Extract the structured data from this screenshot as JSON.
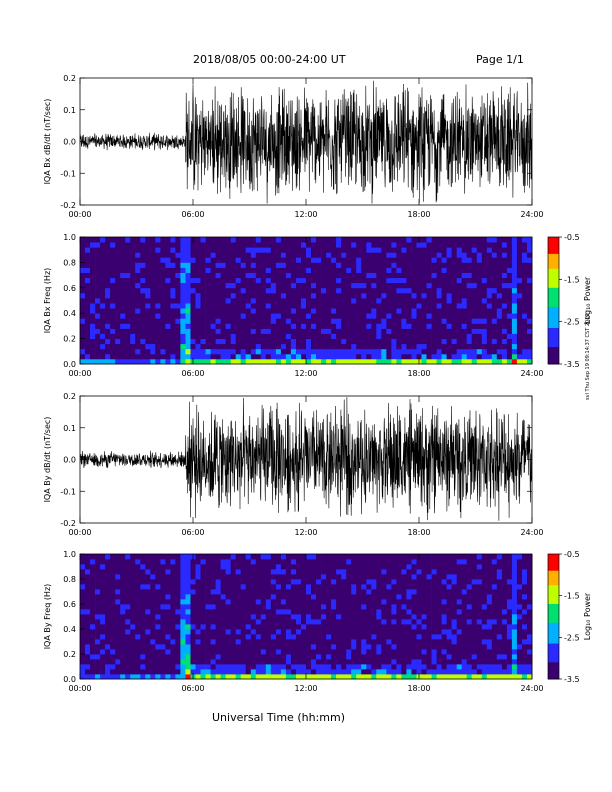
{
  "header": {
    "title": "2018/08/05  00:00-24:00 UT",
    "page": "Page 1/1"
  },
  "footer": {
    "x_axis_title": "Universal Time (hh:mm)"
  },
  "stamp": "svl Thu Sep 19 09:14:37 CST 2019",
  "time_ticks": [
    "00:00",
    "06:00",
    "12:00",
    "18:00",
    "24:00"
  ],
  "chart_data": [
    {
      "type": "line",
      "ylabel": "IQA Bx dB/dt (nT/sec)",
      "xlim": [
        0,
        24
      ],
      "ylim": [
        -0.2,
        0.2
      ],
      "yticks": [
        "0.2",
        "0.1",
        "0.0",
        "-0.1",
        "-0.2"
      ],
      "activity": [
        {
          "x": [
            0,
            5.6
          ],
          "amplitude": 0.03
        },
        {
          "x": [
            5.6,
            24
          ],
          "amplitude": 0.2
        }
      ]
    },
    {
      "type": "heatmap",
      "ylabel": "IQA Bx Freq (Hz)",
      "xlim": [
        0,
        24
      ],
      "ylim": [
        0,
        1.0
      ],
      "yticks": [
        "1.0",
        "0.8",
        "0.6",
        "0.4",
        "0.2",
        "0.0"
      ],
      "colorbar": {
        "label": "Log₁₀ Power",
        "ticks": [
          "-0.5",
          "-1.5",
          "-2.5",
          "-3.5"
        ],
        "range": [
          -3.5,
          -0.5
        ]
      }
    },
    {
      "type": "line",
      "ylabel": "IQA By dB/dt (nT/sec)",
      "xlim": [
        0,
        24
      ],
      "ylim": [
        -0.2,
        0.2
      ],
      "yticks": [
        "0.2",
        "0.1",
        "0.0",
        "-0.1",
        "-0.2"
      ],
      "activity": [
        {
          "x": [
            0,
            5.6
          ],
          "amplitude": 0.03
        },
        {
          "x": [
            5.6,
            24
          ],
          "amplitude": 0.2
        }
      ]
    },
    {
      "type": "heatmap",
      "ylabel": "IQA By Freq (Hz)",
      "xlim": [
        0,
        24
      ],
      "ylim": [
        0,
        1.0
      ],
      "yticks": [
        "1.0",
        "0.8",
        "0.6",
        "0.4",
        "0.2",
        "0.0"
      ],
      "colorbar": {
        "label": "Log₁₀ Power",
        "ticks": [
          "-0.5",
          "-1.5",
          "-2.5",
          "-3.5"
        ],
        "range": [
          -3.5,
          -0.5
        ]
      }
    }
  ]
}
